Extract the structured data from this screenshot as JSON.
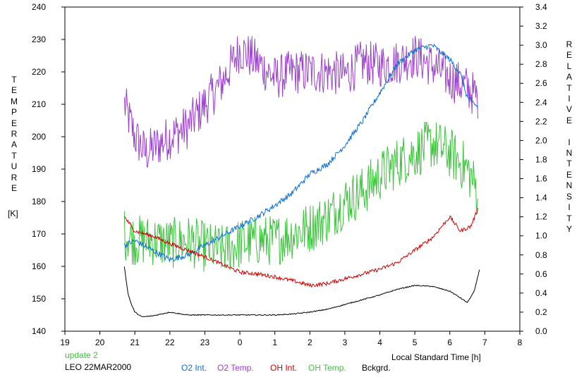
{
  "footer": {
    "update_label": "update 2",
    "station_date": "LEO 22MAR2000",
    "x_axis_caption": "Local Standard Time [h]",
    "unit_label": "[K]"
  },
  "left_axis_letters": [
    "T",
    "E",
    "M",
    "P",
    "E",
    "R",
    "A",
    "T",
    "U",
    "R",
    "E"
  ],
  "right_axis_letters": [
    "R",
    "E",
    "L",
    "A",
    "T",
    "I",
    "V",
    "E",
    "",
    "I",
    "N",
    "T",
    "E",
    "N",
    "S",
    "I",
    "T",
    "Y"
  ],
  "colors": {
    "o2_int": "#0a6fd8",
    "o2_temp": "#9b3fcf",
    "oh_int": "#d00000",
    "oh_temp": "#3cc43c",
    "bckgrd": "#000000",
    "update": "#3cc43c",
    "axes": "#000000"
  },
  "chart_data": {
    "type": "line",
    "title": "",
    "xlabel": "Local Standard Time [h]",
    "ylabel": "TEMPERATURE [K]",
    "y2label": "RELATIVE INTENSITY",
    "x_ticks": [
      19,
      20,
      21,
      22,
      23,
      0,
      1,
      2,
      3,
      4,
      5,
      6,
      7,
      8
    ],
    "x_range_hours_elapsed": [
      19,
      32
    ],
    "ylim": [
      140,
      240
    ],
    "y_ticks": [
      140,
      150,
      160,
      170,
      180,
      190,
      200,
      210,
      220,
      230,
      240
    ],
    "y2lim": [
      0.0,
      3.4
    ],
    "y2_ticks": [
      "0.0",
      "0.2",
      "0.4",
      "0.6",
      "0.8",
      "1.0",
      "1.2",
      "1.4",
      "1.6",
      "1.8",
      "2.0",
      "2.2",
      "2.4",
      "2.6",
      "2.8",
      "3.0",
      "3.2",
      "3.4"
    ],
    "legend_position": "bottom",
    "series": [
      {
        "name": "O2 Int.",
        "axis": "right",
        "color_key": "o2_int",
        "noise": 0.03,
        "x": [
          20.7,
          21.0,
          21.5,
          22.0,
          22.5,
          23.0,
          23.5,
          24.0,
          24.5,
          25.0,
          25.5,
          26.0,
          26.5,
          27.0,
          27.5,
          28.0,
          28.5,
          29.0,
          29.5,
          30.0,
          30.3,
          30.5,
          30.8
        ],
        "values": [
          0.9,
          0.95,
          0.85,
          0.75,
          0.8,
          0.9,
          1.0,
          1.1,
          1.2,
          1.32,
          1.45,
          1.65,
          1.75,
          1.95,
          2.2,
          2.5,
          2.8,
          2.95,
          3.0,
          2.85,
          2.7,
          2.45,
          2.35
        ]
      },
      {
        "name": "O2 Temp.",
        "axis": "left",
        "color_key": "o2_temp",
        "noise": 7,
        "x": [
          20.7,
          21.0,
          21.3,
          21.6,
          22.0,
          22.5,
          23.0,
          23.5,
          24.0,
          24.5,
          25.0,
          25.5,
          26.0,
          26.5,
          27.0,
          27.5,
          28.0,
          28.5,
          29.0,
          29.5,
          30.0,
          30.5,
          30.8
        ],
        "values": [
          210,
          200,
          195,
          197,
          200,
          203,
          210,
          217,
          227,
          223,
          218,
          220,
          220,
          220,
          219,
          223,
          222,
          223,
          225,
          222,
          218,
          215,
          212
        ]
      },
      {
        "name": "OH Int.",
        "axis": "right",
        "color_key": "oh_int",
        "noise": 0.02,
        "x": [
          20.7,
          21.0,
          21.5,
          22.0,
          22.5,
          23.0,
          23.5,
          24.0,
          24.5,
          25.0,
          25.5,
          26.0,
          26.5,
          27.0,
          27.5,
          28.0,
          28.5,
          29.0,
          29.5,
          30.0,
          30.3,
          30.6,
          30.8
        ],
        "values": [
          1.2,
          1.05,
          1.0,
          0.92,
          0.85,
          0.78,
          0.7,
          0.62,
          0.6,
          0.57,
          0.53,
          0.48,
          0.5,
          0.55,
          0.6,
          0.65,
          0.72,
          0.85,
          0.98,
          1.2,
          1.05,
          1.1,
          1.28
        ]
      },
      {
        "name": "OH Temp.",
        "axis": "left",
        "color_key": "oh_temp",
        "noise": 8,
        "x": [
          20.7,
          21.0,
          21.5,
          22.0,
          22.5,
          23.0,
          23.5,
          24.0,
          24.5,
          25.0,
          25.5,
          26.0,
          26.5,
          27.0,
          27.5,
          28.0,
          28.5,
          29.0,
          29.5,
          30.0,
          30.5,
          30.8
        ],
        "values": [
          170,
          168,
          168,
          167,
          168,
          166,
          165,
          167,
          168,
          168,
          170,
          172,
          175,
          180,
          183,
          188,
          192,
          195,
          198,
          195,
          190,
          183
        ]
      },
      {
        "name": "Bckgrd.",
        "axis": "right",
        "color_key": "bckgrd",
        "noise": 0.005,
        "x": [
          20.7,
          20.8,
          20.9,
          21.0,
          21.2,
          21.5,
          22.0,
          22.5,
          23.0,
          23.5,
          24.0,
          24.5,
          25.0,
          25.5,
          26.0,
          26.5,
          27.0,
          27.5,
          28.0,
          28.5,
          29.0,
          29.5,
          30.0,
          30.3,
          30.5,
          30.7,
          30.85
        ],
        "values": [
          0.68,
          0.4,
          0.28,
          0.2,
          0.15,
          0.16,
          0.2,
          0.17,
          0.17,
          0.17,
          0.17,
          0.17,
          0.17,
          0.18,
          0.2,
          0.23,
          0.28,
          0.33,
          0.38,
          0.44,
          0.48,
          0.47,
          0.42,
          0.35,
          0.3,
          0.42,
          0.65
        ]
      }
    ]
  }
}
